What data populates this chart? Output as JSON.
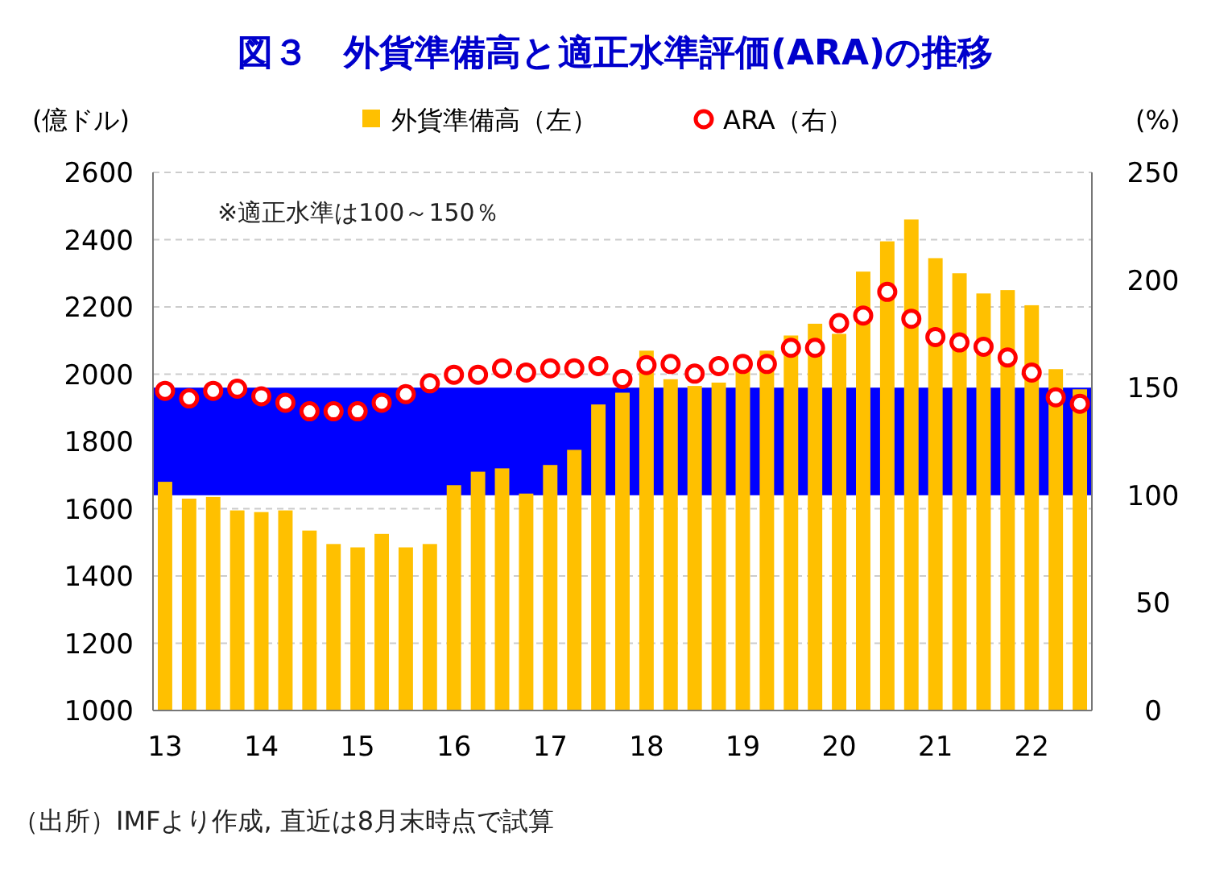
{
  "chart_data": {
    "type": "bar",
    "title": "図３　外貨準備高と適正水準評価(ARA)の推移",
    "ylabel": "(億ドル)",
    "y2label": "(%)",
    "categories": [
      "13",
      null,
      null,
      null,
      "14",
      null,
      null,
      null,
      "15",
      null,
      null,
      null,
      "16",
      null,
      null,
      null,
      "17",
      null,
      null,
      null,
      "18",
      null,
      null,
      null,
      "19",
      null,
      null,
      null,
      "20",
      null,
      null,
      null,
      "21",
      null,
      null,
      null,
      "22",
      null,
      null
    ],
    "series": [
      {
        "name": "外貨準備高（左）",
        "color": "#ffc000",
        "values": [
          1680,
          1630,
          1635,
          1595,
          1590,
          1595,
          1535,
          1495,
          1485,
          1525,
          1485,
          1495,
          1670,
          1710,
          1720,
          1645,
          1730,
          1775,
          1910,
          1945,
          2070,
          1985,
          1965,
          1975,
          2010,
          2070,
          2115,
          2150,
          2120,
          2305,
          2395,
          2460,
          2345,
          2300,
          2240,
          2250,
          2205,
          2015,
          1955
        ]
      },
      {
        "name": "ARA（右）",
        "type": "scatter",
        "axis": "y2",
        "marker": "circle",
        "color": "#ff0000",
        "values": [
          148.5,
          145,
          148.5,
          149.5,
          146,
          143,
          139,
          139,
          139,
          143,
          147,
          152,
          156,
          156,
          159,
          157,
          159,
          159,
          160,
          154,
          160.5,
          161,
          156.5,
          160,
          161,
          161,
          168.5,
          168.5,
          180,
          183.5,
          194.5,
          182,
          173.5,
          171,
          169,
          164,
          157,
          145.5,
          142.5
        ]
      }
    ],
    "ylim": [
      1000,
      2600
    ],
    "yticks": [
      1000,
      1200,
      1400,
      1600,
      1800,
      2000,
      2200,
      2400,
      2600
    ],
    "y2lim": [
      0,
      250
    ],
    "y2ticks": [
      0,
      50,
      100,
      150,
      200,
      250
    ],
    "bands": [
      {
        "axis": "y2",
        "from": 100,
        "to": 150,
        "color": "#0000ff"
      }
    ],
    "grid": "y",
    "legend": "top",
    "annotations": [
      "※適正水準は100～150％",
      "（出所）IMFより作成, 直近は8月末時点で試算"
    ]
  }
}
